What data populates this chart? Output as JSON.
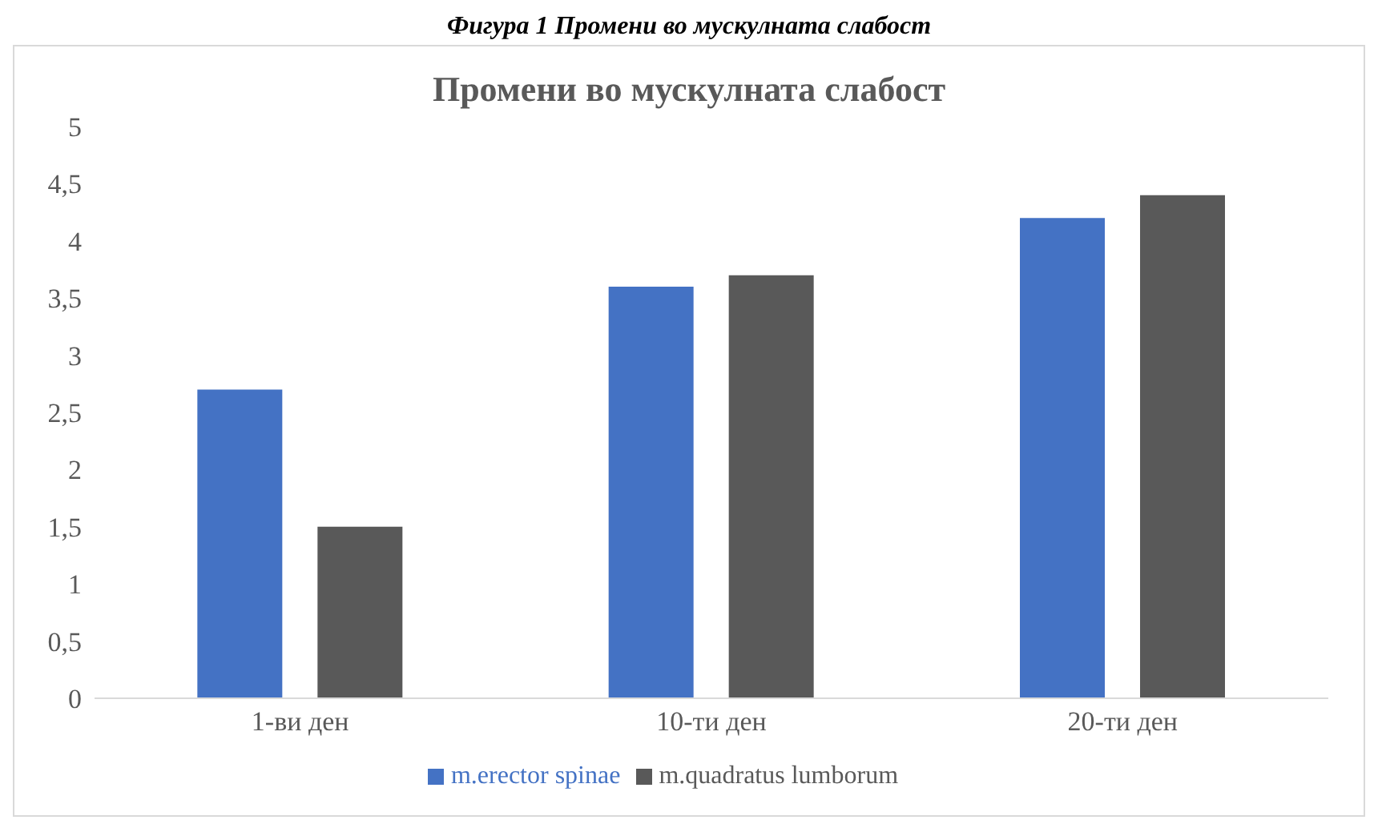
{
  "chart_data": {
    "type": "bar",
    "title": "Промени во мускулната  слабост",
    "annotations": [
      "Фигура 1 Промени во мускулната слабост"
    ],
    "categories": [
      "1-ви ден",
      "10-ти ден",
      "20-ти ден"
    ],
    "series": [
      {
        "name": "m.erector spinae",
        "color": "#4472c4",
        "values": [
          2.7,
          3.6,
          4.2
        ]
      },
      {
        "name": "m.quadratus lumborum",
        "color": "#595959",
        "values": [
          1.5,
          3.7,
          4.4
        ]
      }
    ],
    "ylim": [
      0,
      5
    ],
    "yticks": [
      0,
      {
        "value": 0.5,
        "label": "0,5"
      },
      1,
      {
        "value": 1.5,
        "label": "1,5"
      },
      2,
      {
        "value": 2.5,
        "label": "2,5"
      },
      3,
      {
        "value": 3.5,
        "label": "3,5"
      },
      4,
      {
        "value": 4.5,
        "label": "4,5"
      },
      5
    ],
    "grid": false,
    "legend": "bottom"
  }
}
